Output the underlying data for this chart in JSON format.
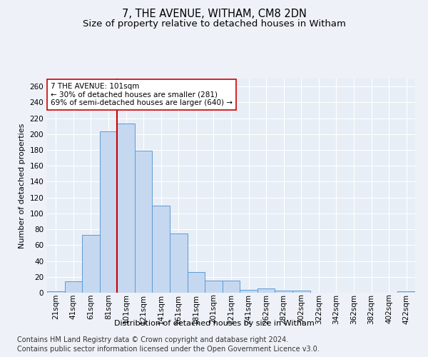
{
  "title": "7, THE AVENUE, WITHAM, CM8 2DN",
  "subtitle": "Size of property relative to detached houses in Witham",
  "xlabel": "Distribution of detached houses by size in Witham",
  "ylabel": "Number of detached properties",
  "footer1": "Contains HM Land Registry data © Crown copyright and database right 2024.",
  "footer2": "Contains public sector information licensed under the Open Government Licence v3.0.",
  "bar_labels": [
    "21sqm",
    "41sqm",
    "61sqm",
    "81sqm",
    "101sqm",
    "121sqm",
    "141sqm",
    "161sqm",
    "181sqm",
    "201sqm",
    "221sqm",
    "241sqm",
    "262sqm",
    "282sqm",
    "302sqm",
    "322sqm",
    "342sqm",
    "362sqm",
    "382sqm",
    "402sqm",
    "422sqm"
  ],
  "bar_values": [
    2,
    14,
    73,
    203,
    213,
    179,
    110,
    75,
    26,
    15,
    15,
    4,
    5,
    3,
    3,
    0,
    0,
    0,
    0,
    0,
    2
  ],
  "bar_color": "#c5d8f0",
  "bar_edge_color": "#5b9bd5",
  "ylim": [
    0,
    270
  ],
  "yticks": [
    0,
    20,
    40,
    60,
    80,
    100,
    120,
    140,
    160,
    180,
    200,
    220,
    240,
    260
  ],
  "vline_index": 4,
  "vline_color": "#cc0000",
  "annotation_text": "7 THE AVENUE: 101sqm\n← 30% of detached houses are smaller (281)\n69% of semi-detached houses are larger (640) →",
  "annotation_box_color": "#ffffff",
  "annotation_box_edge": "#cc0000",
  "bg_color": "#eef2f8",
  "plot_bg_color": "#e8eef6",
  "grid_color": "#ffffff",
  "title_fontsize": 10.5,
  "subtitle_fontsize": 9.5,
  "label_fontsize": 8,
  "tick_fontsize": 7.5,
  "footer_fontsize": 7
}
